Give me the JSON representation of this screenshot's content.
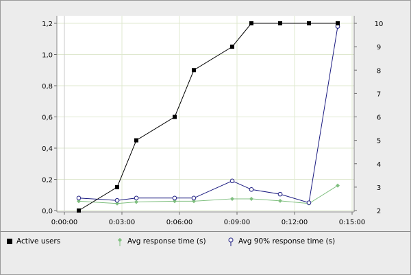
{
  "chart_data": {
    "type": "line",
    "x_ticks": [
      "0:00:00",
      "0:03:00",
      "0:06:00",
      "0:09:00",
      "0:12:00",
      "0:15:00"
    ],
    "xlim_seconds": [
      0,
      900
    ],
    "left_axis": {
      "ticks": [
        "0,0",
        "0,2",
        "0,4",
        "0,6",
        "0,8",
        "1,0",
        "1,2"
      ],
      "ylim": [
        0,
        1.2
      ]
    },
    "right_axis": {
      "ticks": [
        "2",
        "3",
        "4",
        "5",
        "6",
        "7",
        "8",
        "9",
        "10"
      ],
      "ylim": [
        2,
        10
      ]
    },
    "grid": true,
    "legend_position": "bottom",
    "series": [
      {
        "name": "Active users",
        "axis": "right",
        "color": "#000000",
        "marker": "filled-square",
        "points": [
          {
            "x": "0:00:45",
            "y": 2
          },
          {
            "x": "0:02:45",
            "y": 3
          },
          {
            "x": "0:03:45",
            "y": 5
          },
          {
            "x": "0:05:45",
            "y": 6
          },
          {
            "x": "0:06:45",
            "y": 8
          },
          {
            "x": "0:08:45",
            "y": 9
          },
          {
            "x": "0:09:45",
            "y": 10
          },
          {
            "x": "0:11:15",
            "y": 10
          },
          {
            "x": "0:12:45",
            "y": 10
          },
          {
            "x": "0:14:15",
            "y": 10
          }
        ]
      },
      {
        "name": "Avg response time (s)",
        "axis": "left",
        "color": "#7fbf7f",
        "marker": "diamond",
        "points": [
          {
            "x": "0:00:45",
            "y": 0.06
          },
          {
            "x": "0:02:45",
            "y": 0.045
          },
          {
            "x": "0:03:45",
            "y": 0.055
          },
          {
            "x": "0:05:45",
            "y": 0.06
          },
          {
            "x": "0:06:45",
            "y": 0.06
          },
          {
            "x": "0:08:45",
            "y": 0.075
          },
          {
            "x": "0:09:45",
            "y": 0.075
          },
          {
            "x": "0:11:15",
            "y": 0.062
          },
          {
            "x": "0:12:45",
            "y": 0.045
          },
          {
            "x": "0:14:15",
            "y": 0.16
          }
        ]
      },
      {
        "name": "Avg 90% response time (s)",
        "axis": "left",
        "color": "#1a1a80",
        "marker": "hollow-circle",
        "points": [
          {
            "x": "0:00:45",
            "y": 0.08
          },
          {
            "x": "0:02:45",
            "y": 0.065
          },
          {
            "x": "0:03:45",
            "y": 0.08
          },
          {
            "x": "0:05:45",
            "y": 0.08
          },
          {
            "x": "0:06:45",
            "y": 0.08
          },
          {
            "x": "0:08:45",
            "y": 0.19
          },
          {
            "x": "0:09:45",
            "y": 0.135
          },
          {
            "x": "0:11:15",
            "y": 0.105
          },
          {
            "x": "0:12:45",
            "y": 0.05
          },
          {
            "x": "0:14:15",
            "y": 1.18
          }
        ]
      }
    ]
  },
  "legend": [
    {
      "label": "Active users",
      "icon": "filled-square-icon",
      "color": "#000000"
    },
    {
      "label": "Avg response time (s)",
      "icon": "diamond-icon",
      "color": "#7fbf7f"
    },
    {
      "label": "Avg 90% response time (s)",
      "icon": "hollow-circle-icon",
      "color": "#1a1a80"
    }
  ]
}
